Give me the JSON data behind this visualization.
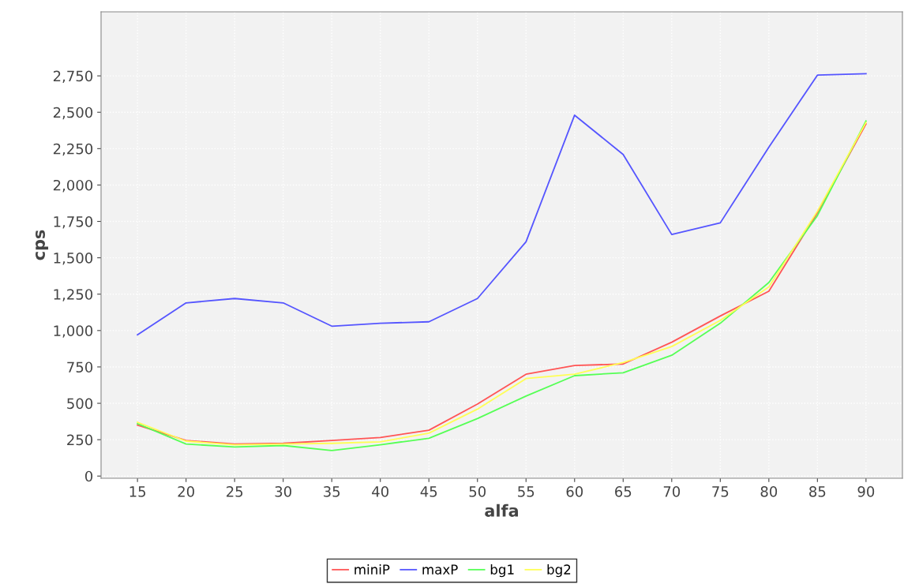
{
  "chart_data": {
    "type": "line",
    "xlabel": "alfa",
    "ylabel": "cps",
    "categories": [
      "15",
      "20",
      "25",
      "30",
      "35",
      "40",
      "45",
      "50",
      "55",
      "60",
      "65",
      "70",
      "75",
      "80",
      "85",
      "90"
    ],
    "series": [
      {
        "name": "miniP",
        "color": "#ff5555",
        "values": [
          350,
          245,
          220,
          225,
          245,
          265,
          315,
          495,
          700,
          760,
          770,
          920,
          1100,
          1270,
          1810,
          2420
        ]
      },
      {
        "name": "maxP",
        "color": "#5555ff",
        "values": [
          970,
          1190,
          1220,
          1190,
          1030,
          1050,
          1060,
          1220,
          1610,
          2480,
          2210,
          1660,
          1740,
          2260,
          2755,
          2765
        ]
      },
      {
        "name": "bg1",
        "color": "#55ff55",
        "values": [
          360,
          220,
          200,
          210,
          175,
          215,
          260,
          395,
          550,
          690,
          710,
          830,
          1050,
          1330,
          1790,
          2440
        ]
      },
      {
        "name": "bg2",
        "color": "#ffff55",
        "values": [
          370,
          240,
          215,
          220,
          225,
          235,
          295,
          460,
          670,
          700,
          780,
          890,
          1070,
          1300,
          1820,
          2430
        ]
      }
    ],
    "ylim": [
      -15,
      3190
    ],
    "yticks": [
      0,
      {
        "value": 250,
        "label": "250"
      },
      {
        "value": 500,
        "label": "500"
      },
      {
        "value": 750,
        "label": "750"
      },
      {
        "value": 1000,
        "label": "1,000"
      },
      {
        "value": 1250,
        "label": "1,250"
      },
      {
        "value": 1500,
        "label": "1,500"
      },
      {
        "value": 1750,
        "label": "1,750"
      },
      {
        "value": 2000,
        "label": "2,000"
      },
      {
        "value": 2250,
        "label": "2,250"
      },
      {
        "value": 2500,
        "label": "2,500"
      },
      {
        "value": 2750,
        "label": "2,750"
      }
    ],
    "grid": true,
    "legend": "bottom",
    "marker": "none",
    "line_style": "solid"
  }
}
